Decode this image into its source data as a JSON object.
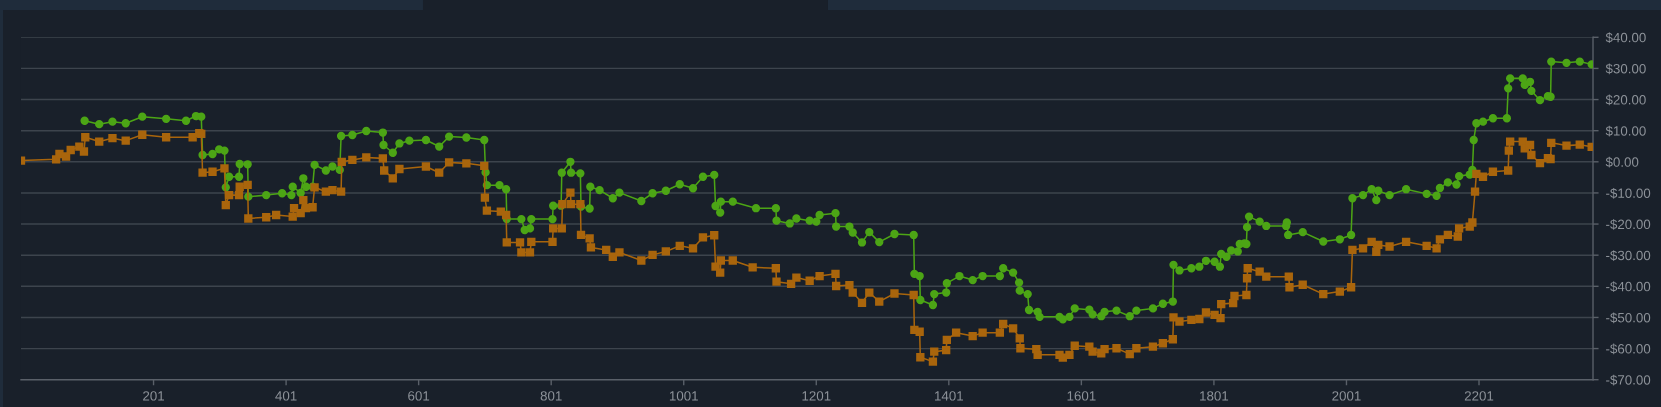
{
  "chart_data": {
    "type": "line",
    "xlim": [
      1,
      2373
    ],
    "ylim": [
      -70,
      40
    ],
    "xticks": [
      201,
      401,
      601,
      801,
      1001,
      1201,
      1401,
      1601,
      1801,
      2001,
      2201
    ],
    "yticks": [
      {
        "value": -70,
        "label": "-$70.00"
      },
      {
        "value": -60,
        "label": "-$60.00"
      },
      {
        "value": -50,
        "label": "-$50.00"
      },
      {
        "value": -40,
        "label": "-$40.00"
      },
      {
        "value": -30,
        "label": "-$30.00"
      },
      {
        "value": -20,
        "label": "-$20.00"
      },
      {
        "value": -10,
        "label": "-$10.00"
      },
      {
        "value": 0,
        "label": "$0.00"
      },
      {
        "value": 10,
        "label": "$10.00"
      },
      {
        "value": 20,
        "label": "$20.00"
      },
      {
        "value": 30,
        "label": "$30.00"
      },
      {
        "value": 40,
        "label": "$40.00"
      }
    ],
    "grid": "y",
    "line_style": "solid",
    "legend": false,
    "series": [
      {
        "color": "#4ca515",
        "marker": "circle",
        "x": [
          97,
          119,
          139,
          159,
          184,
          220,
          250,
          265,
          273,
          275,
          290,
          300,
          308,
          310,
          315,
          330,
          331,
          343,
          344,
          371,
          395,
          409,
          411,
          423,
          427,
          431,
          441,
          444,
          461,
          471,
          482,
          484,
          501,
          522,
          547,
          548,
          562,
          572,
          587,
          612,
          632,
          647,
          673,
          700,
          702,
          704,
          723,
          733,
          734,
          756,
          761,
          769,
          771,
          803,
          804,
          816,
          817,
          830,
          831,
          845,
          846,
          859,
          860,
          874,
          894,
          904,
          937,
          954,
          974,
          995,
          1015,
          1030,
          1047,
          1049,
          1056,
          1057,
          1075,
          1110,
          1140,
          1141,
          1161,
          1171,
          1191,
          1201,
          1206,
          1230,
          1231,
          1251,
          1256,
          1270,
          1281,
          1296,
          1319,
          1348,
          1349,
          1357,
          1358,
          1377,
          1379,
          1397,
          1398,
          1417,
          1437,
          1452,
          1478,
          1483,
          1498,
          1507,
          1508,
          1520,
          1522,
          1535,
          1538,
          1568,
          1573,
          1583,
          1591,
          1613,
          1618,
          1631,
          1636,
          1654,
          1674,
          1684,
          1709,
          1724,
          1739,
          1740,
          1749,
          1767,
          1779,
          1789,
          1802,
          1810,
          1812,
          1820,
          1827,
          1837,
          1840,
          1847,
          1850,
          1851,
          1854,
          1870,
          1880,
          1910,
          1911,
          1913,
          1935,
          1966,
          1991,
          2008,
          2010,
          2026,
          2039,
          2046,
          2049,
          2066,
          2091,
          2122,
          2137,
          2142,
          2154,
          2167,
          2171,
          2187,
          2191,
          2193,
          2197,
          2207,
          2222,
          2243,
          2245,
          2248,
          2267,
          2270,
          2278,
          2280,
          2293,
          2305,
          2309,
          2310,
          2333,
          2353,
          2371
        ],
        "values": [
          13.2,
          12.1,
          12.9,
          12.4,
          14.5,
          13.8,
          13.2,
          14.7,
          14.5,
          2.2,
          2.5,
          4.0,
          3.6,
          -8.2,
          -4.8,
          -4.8,
          -0.7,
          -0.8,
          -11.2,
          -10.7,
          -10.1,
          -10.7,
          -8.0,
          -10.0,
          -5.3,
          -8.0,
          -8.0,
          -1.0,
          -2.8,
          -1.5,
          -2.6,
          8.3,
          8.6,
          9.9,
          9.4,
          5.4,
          2.9,
          5.9,
          6.8,
          7.0,
          4.9,
          8.1,
          7.8,
          7.0,
          -3.4,
          -7.5,
          -7.5,
          -8.8,
          -18.4,
          -18.4,
          -21.9,
          -21.4,
          -18.4,
          -18.4,
          -14.1,
          -14.1,
          -3.5,
          0.0,
          -3.5,
          -3.7,
          -14.4,
          -15.0,
          -8.0,
          -9.1,
          -11.7,
          -9.9,
          -12.6,
          -10.1,
          -9.3,
          -7.2,
          -8.5,
          -4.8,
          -4.2,
          -14.2,
          -16.3,
          -12.8,
          -12.8,
          -14.9,
          -14.9,
          -18.9,
          -19.8,
          -18.2,
          -18.9,
          -19.2,
          -17.1,
          -16.5,
          -20.8,
          -20.8,
          -22.7,
          -25.9,
          -22.6,
          -25.8,
          -23.2,
          -23.5,
          -36.0,
          -36.7,
          -44.4,
          -46.0,
          -42.5,
          -42.0,
          -39.0,
          -36.7,
          -38.0,
          -36.7,
          -36.7,
          -34.2,
          -35.6,
          -38.8,
          -41.4,
          -42.5,
          -47.6,
          -48.2,
          -49.8,
          -49.8,
          -50.6,
          -49.8,
          -47.1,
          -47.5,
          -49.0,
          -49.6,
          -48.2,
          -47.8,
          -49.6,
          -47.8,
          -47.1,
          -45.6,
          -44.9,
          -33.1,
          -34.9,
          -34.2,
          -33.7,
          -31.8,
          -32.1,
          -33.7,
          -29.6,
          -30.5,
          -28.5,
          -28.8,
          -26.4,
          -26.2,
          -26.4,
          -21.0,
          -17.6,
          -19.2,
          -20.6,
          -20.6,
          -19.5,
          -23.5,
          -22.6,
          -25.6,
          -24.9,
          -23.5,
          -11.7,
          -10.7,
          -8.8,
          -12.3,
          -9.3,
          -10.7,
          -8.8,
          -10.3,
          -10.9,
          -8.4,
          -6.6,
          -7.3,
          -4.6,
          -4.1,
          -2.6,
          7.0,
          12.4,
          12.9,
          14.0,
          14.0,
          23.6,
          26.8,
          26.8,
          24.7,
          25.7,
          22.8,
          19.8,
          21.1,
          20.9,
          32.2,
          31.8,
          32.2,
          31.3
        ]
      },
      {
        "color": "#a9650c",
        "marker": "square",
        "x": [
          1,
          54,
          59,
          69,
          76,
          89,
          96,
          98,
          119,
          139,
          159,
          184,
          220,
          260,
          270,
          273,
          275,
          290,
          308,
          310,
          315,
          330,
          331,
          343,
          344,
          371,
          386,
          411,
          413,
          423,
          427,
          431,
          441,
          444,
          461,
          471,
          484,
          485,
          501,
          522,
          547,
          549,
          562,
          572,
          612,
          632,
          647,
          673,
          700,
          701,
          704,
          725,
          733,
          734,
          754,
          756,
          769,
          771,
          803,
          804,
          817,
          818,
          830,
          831,
          845,
          846,
          859,
          861,
          884,
          894,
          904,
          937,
          954,
          974,
          995,
          1015,
          1030,
          1047,
          1049,
          1056,
          1057,
          1075,
          1105,
          1140,
          1141,
          1163,
          1171,
          1191,
          1206,
          1230,
          1231,
          1251,
          1256,
          1270,
          1281,
          1296,
          1319,
          1348,
          1349,
          1357,
          1358,
          1377,
          1379,
          1397,
          1398,
          1412,
          1437,
          1452,
          1478,
          1483,
          1498,
          1508,
          1509,
          1533,
          1535,
          1568,
          1573,
          1583,
          1591,
          1613,
          1618,
          1631,
          1636,
          1654,
          1674,
          1684,
          1709,
          1724,
          1739,
          1740,
          1749,
          1767,
          1779,
          1789,
          1802,
          1811,
          1812,
          1830,
          1832,
          1850,
          1851,
          1852,
          1870,
          1880,
          1914,
          1915,
          1935,
          1966,
          1991,
          2008,
          2010,
          2026,
          2039,
          2046,
          2049,
          2066,
          2091,
          2122,
          2137,
          2142,
          2154,
          2169,
          2171,
          2187,
          2191,
          2195,
          2197,
          2207,
          2222,
          2245,
          2246,
          2248,
          2267,
          2270,
          2278,
          2280,
          2293,
          2305,
          2309,
          2310,
          2333,
          2353,
          2371
        ],
        "values": [
          0.4,
          0.8,
          2.5,
          1.7,
          3.8,
          4.9,
          3.3,
          7.9,
          6.5,
          7.6,
          6.8,
          8.7,
          7.9,
          7.9,
          9.2,
          9.0,
          -3.5,
          -3.2,
          -2.1,
          -13.9,
          -10.7,
          -10.7,
          -8.0,
          -7.4,
          -18.2,
          -17.8,
          -17.1,
          -17.6,
          -14.9,
          -16.5,
          -12.3,
          -14.9,
          -14.6,
          -8.2,
          -9.6,
          -9.1,
          -9.6,
          0.0,
          0.6,
          1.4,
          1.1,
          -2.8,
          -5.3,
          -2.3,
          -1.5,
          -3.5,
          -0.2,
          -0.5,
          -1.3,
          -11.5,
          -15.7,
          -16.0,
          -17.1,
          -25.9,
          -25.9,
          -29.1,
          -29.1,
          -25.7,
          -25.7,
          -21.4,
          -21.4,
          -13.6,
          -9.9,
          -13.6,
          -13.6,
          -23.5,
          -24.6,
          -27.5,
          -28.3,
          -30.5,
          -29.1,
          -31.7,
          -29.9,
          -28.8,
          -27.0,
          -27.8,
          -24.3,
          -23.6,
          -33.7,
          -35.6,
          -31.7,
          -31.7,
          -33.9,
          -34.2,
          -38.5,
          -39.2,
          -37.2,
          -38.2,
          -36.7,
          -36.0,
          -39.9,
          -39.6,
          -42.0,
          -45.3,
          -42.0,
          -44.9,
          -42.3,
          -42.8,
          -54.0,
          -54.6,
          -62.8,
          -64.2,
          -61.0,
          -60.5,
          -57.2,
          -54.9,
          -56.0,
          -54.9,
          -54.9,
          -52.1,
          -53.5,
          -56.7,
          -59.9,
          -60.2,
          -62.0,
          -62.0,
          -62.9,
          -62.0,
          -59.1,
          -59.4,
          -61.0,
          -61.5,
          -60.2,
          -59.9,
          -61.8,
          -59.9,
          -59.4,
          -58.3,
          -57.0,
          -50.0,
          -51.3,
          -50.8,
          -50.5,
          -48.4,
          -49.2,
          -50.2,
          -45.7,
          -45.4,
          -43.1,
          -42.8,
          -37.4,
          -34.2,
          -35.3,
          -36.9,
          -36.9,
          -40.3,
          -39.5,
          -42.5,
          -41.7,
          -40.3,
          -28.3,
          -27.8,
          -25.7,
          -28.9,
          -26.7,
          -27.2,
          -25.7,
          -27.0,
          -27.8,
          -24.9,
          -23.5,
          -24.0,
          -21.4,
          -20.8,
          -19.5,
          -9.6,
          -3.9,
          -4.8,
          -3.2,
          -2.8,
          3.6,
          6.5,
          6.5,
          4.3,
          5.4,
          2.2,
          -0.4,
          1.2,
          0.9,
          6.1,
          5.2,
          5.5,
          4.8
        ]
      }
    ]
  }
}
